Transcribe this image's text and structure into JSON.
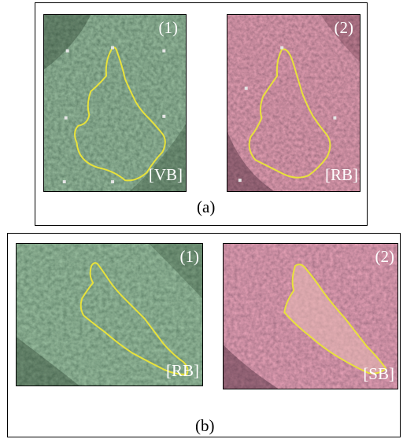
{
  "panel_a": {
    "caption": "(a)",
    "images": [
      {
        "number": "(1)",
        "band": "[VB]",
        "palette": "green"
      },
      {
        "number": "(2)",
        "band": "[RB]",
        "palette": "red"
      }
    ]
  },
  "panel_b": {
    "caption": "(b)",
    "images": [
      {
        "number": "(1)",
        "band": "[RB]",
        "palette": "green"
      },
      {
        "number": "(2)",
        "band": "[SB]",
        "palette": "red"
      }
    ]
  },
  "colors": {
    "outline": "#e8e23a",
    "green_base": "#3b5a3e",
    "red_base": "#9a4d61",
    "marker": "#e6e6e6"
  }
}
